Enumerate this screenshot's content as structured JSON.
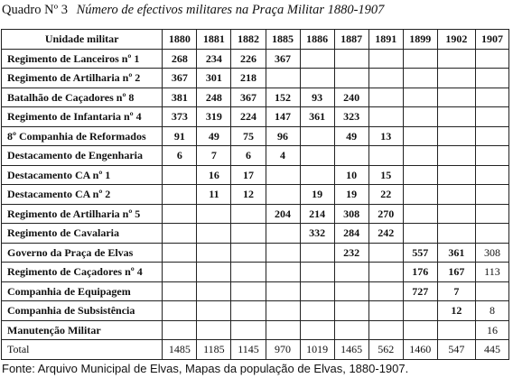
{
  "caption": {
    "label": "Quadro Nº 3",
    "title": "Número de efectivos militares na Praça Militar 1880-1907"
  },
  "table": {
    "header": [
      "Unidade militar",
      "1880",
      "1881",
      "1882",
      "1885",
      "1886",
      "1887",
      "1891",
      "1899",
      "1902",
      "1907"
    ],
    "rows": [
      {
        "unit": "Regimento de Lanceiros nº 1",
        "values": [
          "268",
          "234",
          "226",
          "367",
          "",
          "",
          "",
          "",
          "",
          ""
        ]
      },
      {
        "unit": "Regimento de Artilharia nº 2",
        "values": [
          "367",
          "301",
          "218",
          "",
          "",
          "",
          "",
          "",
          "",
          ""
        ]
      },
      {
        "unit": "Batalhão de Caçadores nº 8",
        "values": [
          "381",
          "248",
          "367",
          "152",
          "93",
          "240",
          "",
          "",
          "",
          ""
        ]
      },
      {
        "unit": "Regimento de Infantaria nº 4",
        "values": [
          "373",
          "319",
          "224",
          "147",
          "361",
          "323",
          "",
          "",
          "",
          ""
        ]
      },
      {
        "unit": "8º Companhia de Reformados",
        "values": [
          "91",
          "49",
          "75",
          "96",
          "",
          "49",
          "13",
          "",
          "",
          ""
        ]
      },
      {
        "unit": "Destacamento de Engenharia",
        "values": [
          "6",
          "7",
          "6",
          "4",
          "",
          "",
          "",
          "",
          "",
          ""
        ]
      },
      {
        "unit": "Destacamento CA nº 1",
        "values": [
          "",
          "16",
          "17",
          "",
          "",
          "10",
          "15",
          "",
          "",
          ""
        ]
      },
      {
        "unit": "Destacamento CA nº 2",
        "values": [
          "",
          "11",
          "12",
          "",
          "19",
          "19",
          "22",
          "",
          "",
          ""
        ]
      },
      {
        "unit": "Regimento de Artilharia nº 5",
        "values": [
          "",
          "",
          "",
          "204",
          "214",
          "308",
          "270",
          "",
          "",
          ""
        ]
      },
      {
        "unit": "Regimento de Cavalaria",
        "values": [
          "",
          "",
          "",
          "",
          "332",
          "284",
          "242",
          "",
          "",
          ""
        ]
      },
      {
        "unit": "Governo da Praça de Elvas",
        "values": [
          "",
          "",
          "",
          "",
          "",
          "232",
          "",
          "557",
          "361",
          "308"
        ]
      },
      {
        "unit": "Regimento de Caçadores nº 4",
        "values": [
          "",
          "",
          "",
          "",
          "",
          "",
          "",
          "176",
          "167",
          "113"
        ]
      },
      {
        "unit": "Companhia de Equipagem",
        "values": [
          "",
          "",
          "",
          "",
          "",
          "",
          "",
          "727",
          "7",
          ""
        ]
      },
      {
        "unit": "Companhia de Subsistência",
        "values": [
          "",
          "",
          "",
          "",
          "",
          "",
          "",
          "",
          "12",
          "8"
        ]
      },
      {
        "unit": "Manutenção Militar",
        "values": [
          "",
          "",
          "",
          "",
          "",
          "",
          "",
          "",
          "",
          "16"
        ]
      }
    ],
    "total": {
      "label": "Total",
      "values": [
        "1485",
        "1185",
        "1145",
        "970",
        "1019",
        "1465",
        "562",
        "1460",
        "547",
        "445"
      ]
    }
  },
  "source": "Fonte: Arquivo Municipal de Elvas, Mapas da população de Elvas, 1880-1907."
}
